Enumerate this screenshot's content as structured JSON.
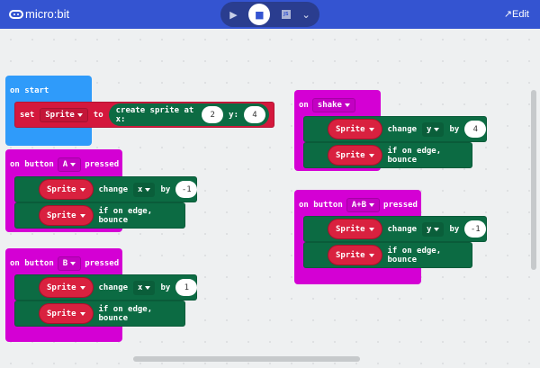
{
  "header": {
    "app_name": "micro:bit",
    "edit_label": "Edit",
    "modes": [
      "play",
      "blocks",
      "javascript",
      "more"
    ]
  },
  "colors": {
    "header": "#3454d1",
    "on_start": "#2f9bfa",
    "event": "#d400d4",
    "sprite": "#d4183d",
    "game": "#0c6b43"
  },
  "blocks": {
    "on_start": {
      "label": "on start",
      "set": "set",
      "var": "Sprite",
      "to": "to",
      "create": "create sprite at x:",
      "x": "2",
      "y_label": "y:",
      "y": "4"
    },
    "button_a": {
      "on": "on button",
      "button": "A",
      "pressed": "pressed",
      "var": "Sprite",
      "change": "change",
      "axis": "x",
      "by": "by",
      "value": "-1",
      "bounce": "if on edge, bounce"
    },
    "button_b": {
      "on": "on button",
      "button": "B",
      "pressed": "pressed",
      "var": "Sprite",
      "change": "change",
      "axis": "x",
      "by": "by",
      "value": "1",
      "bounce": "if on edge, bounce"
    },
    "shake": {
      "on": "on",
      "gesture": "shake",
      "var": "Sprite",
      "change": "change",
      "axis": "y",
      "by": "by",
      "value": "4",
      "bounce": "if on edge, bounce"
    },
    "button_ab": {
      "on": "on button",
      "button": "A+B",
      "pressed": "pressed",
      "var": "Sprite",
      "change": "change",
      "axis": "y",
      "by": "by",
      "value": "-1",
      "bounce": "if on edge, bounce"
    }
  }
}
